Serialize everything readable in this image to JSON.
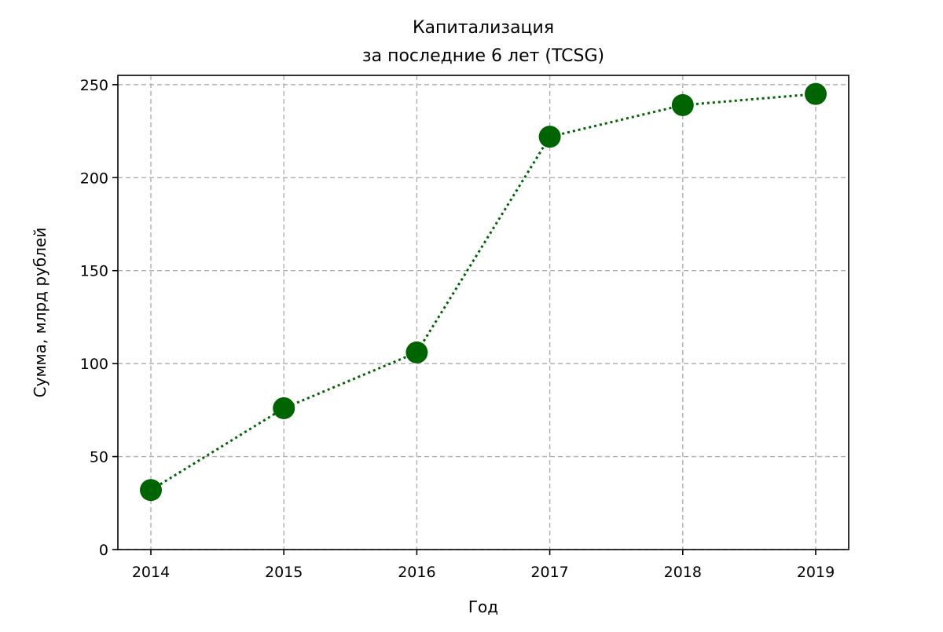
{
  "chart_data": {
    "type": "line",
    "title": [
      "Капитализация",
      "за последние 6 лет (TCSG)"
    ],
    "xlabel": "Год",
    "ylabel": "Сумма, млрд рублей",
    "categories": [
      "2014",
      "2015",
      "2016",
      "2017",
      "2018",
      "2019"
    ],
    "series": [
      {
        "values": [
          32,
          76,
          106,
          222,
          239,
          245
        ],
        "color": "#006400",
        "line_style": "dotted",
        "marker": "circle"
      }
    ],
    "yticks": [
      0,
      50,
      100,
      150,
      200,
      250
    ],
    "ylim": [
      0,
      255
    ],
    "grid": true,
    "grid_style": "dashed"
  }
}
